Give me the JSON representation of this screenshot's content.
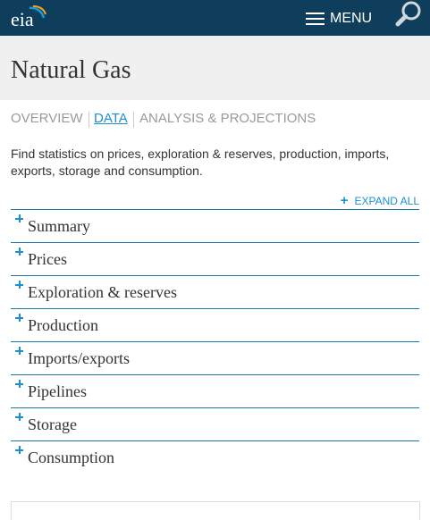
{
  "header": {
    "logo_text": "eia",
    "menu_label": "MENU",
    "icons": {
      "menu": "hamburger-icon",
      "search": "magnifier-icon"
    },
    "colors": {
      "bar": "#0f3e5c",
      "text": "#ffffff"
    }
  },
  "page": {
    "title": "Natural Gas"
  },
  "tabs": [
    {
      "label": "OVERVIEW",
      "active": false
    },
    {
      "label": "DATA",
      "active": true
    },
    {
      "label": "ANALYSIS & PROJECTIONS",
      "active": false
    }
  ],
  "intro": "Find statistics on prices, exploration & reserves, production, imports, exports, storage and consumption.",
  "expand_all": {
    "label": "EXPAND ALL",
    "icon": "plus-icon"
  },
  "accordion": [
    {
      "label": "Summary"
    },
    {
      "label": "Prices"
    },
    {
      "label": "Exploration & reserves"
    },
    {
      "label": "Production"
    },
    {
      "label": "Imports/exports"
    },
    {
      "label": "Pipelines"
    },
    {
      "label": "Storage"
    },
    {
      "label": "Consumption"
    }
  ],
  "colors": {
    "accent": "#1a90d0",
    "divider": "#1a78a8",
    "title_band": "#f0f0f0"
  }
}
